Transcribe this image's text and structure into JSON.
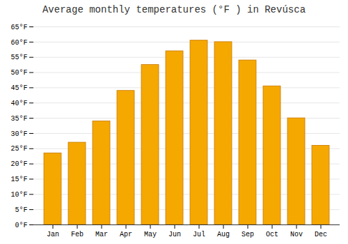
{
  "chart_data": {
    "type": "bar",
    "title": "Average monthly temperatures (°F ) in Revúsca",
    "categories": [
      "Jan",
      "Feb",
      "Mar",
      "Apr",
      "May",
      "Jun",
      "Jul",
      "Aug",
      "Sep",
      "Oct",
      "Nov",
      "Dec"
    ],
    "values": [
      23.5,
      27.0,
      34.0,
      44.0,
      52.5,
      57.0,
      60.5,
      60.0,
      54.0,
      45.5,
      35.0,
      26.0
    ],
    "color": "#F5A800",
    "ylim": [
      0,
      65
    ],
    "yticks": [
      {
        "value": 0,
        "label": "0°F"
      },
      {
        "value": 5,
        "label": "5°F"
      },
      {
        "value": 10,
        "label": "10°F"
      },
      {
        "value": 15,
        "label": "15°F"
      },
      {
        "value": 20,
        "label": "20°F"
      },
      {
        "value": 25,
        "label": "25°F"
      },
      {
        "value": 30,
        "label": "30°F"
      },
      {
        "value": 35,
        "label": "35°F"
      },
      {
        "value": 40,
        "label": "40°F"
      },
      {
        "value": 45,
        "label": "45°F"
      },
      {
        "value": 50,
        "label": "50°F"
      },
      {
        "value": 55,
        "label": "55°F"
      },
      {
        "value": 60,
        "label": "60°F"
      },
      {
        "value": 65,
        "label": "65°F"
      }
    ],
    "grid": true
  }
}
